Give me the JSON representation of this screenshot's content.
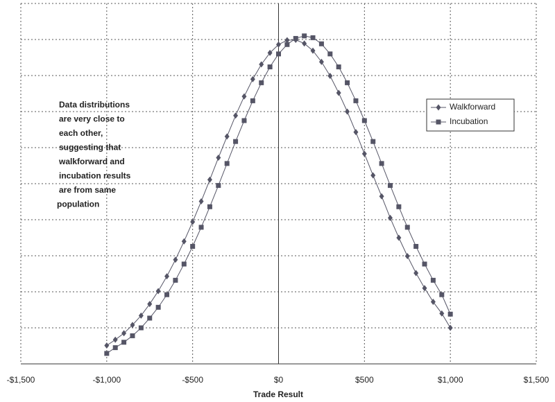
{
  "chart_data": {
    "type": "line",
    "x_label": "Trade Result",
    "annotation": [
      "Data distributions",
      "are very close to",
      "each other,",
      "suggesting that",
      "walkforward and",
      "incubation results",
      "are from same",
      "population"
    ],
    "x": [
      -1000,
      -950,
      -900,
      -850,
      -800,
      -750,
      -700,
      -650,
      -600,
      -550,
      -500,
      -450,
      -400,
      -350,
      -300,
      -250,
      -200,
      -150,
      -100,
      -50,
      0,
      50,
      100,
      150,
      200,
      250,
      300,
      350,
      400,
      450,
      500,
      550,
      600,
      650,
      700,
      750,
      800,
      850,
      900,
      950,
      1000
    ],
    "series": [
      {
        "name": "Walkforward",
        "color": "#555566",
        "marker": "diamond",
        "values": [
          0.51,
          0.67,
          0.85,
          1.08,
          1.34,
          1.66,
          2.02,
          2.43,
          2.89,
          3.4,
          3.94,
          4.51,
          5.11,
          5.72,
          6.31,
          6.89,
          7.42,
          7.9,
          8.31,
          8.63,
          8.86,
          8.98,
          8.99,
          8.89,
          8.69,
          8.38,
          7.99,
          7.52,
          7.0,
          6.43,
          5.83,
          5.23,
          4.65,
          4.05,
          3.5,
          2.99,
          2.52,
          2.1,
          1.72,
          1.4,
          1.0
        ]
      },
      {
        "name": "Incubation",
        "color": "#555566",
        "marker": "square",
        "values": [
          0.29,
          0.45,
          0.6,
          0.78,
          1.0,
          1.27,
          1.57,
          1.92,
          2.32,
          2.77,
          3.26,
          3.79,
          4.36,
          4.95,
          5.56,
          6.17,
          6.75,
          7.3,
          7.8,
          8.24,
          8.6,
          8.86,
          9.03,
          9.1,
          9.05,
          8.88,
          8.6,
          8.24,
          7.8,
          7.3,
          6.75,
          6.17,
          5.56,
          4.95,
          4.36,
          3.79,
          3.26,
          2.77,
          2.32,
          1.92,
          1.38
        ]
      }
    ],
    "xlim": [
      -1500,
      1500
    ],
    "xticks": [
      {
        "value": -1500,
        "label": "-$1,500"
      },
      {
        "value": -1000,
        "label": "-$1,000"
      },
      {
        "value": -500,
        "label": "-$500"
      },
      {
        "value": 0,
        "label": "$0"
      },
      {
        "value": 500,
        "label": "$500"
      },
      {
        "value": 1000,
        "label": "$1,000"
      },
      {
        "value": 1500,
        "label": "$1,500"
      }
    ],
    "ylim": [
      0,
      10
    ],
    "yticks": [
      0,
      1,
      2,
      3,
      4,
      5,
      6,
      7,
      8,
      9,
      10
    ],
    "grid": true,
    "legend": "right"
  }
}
